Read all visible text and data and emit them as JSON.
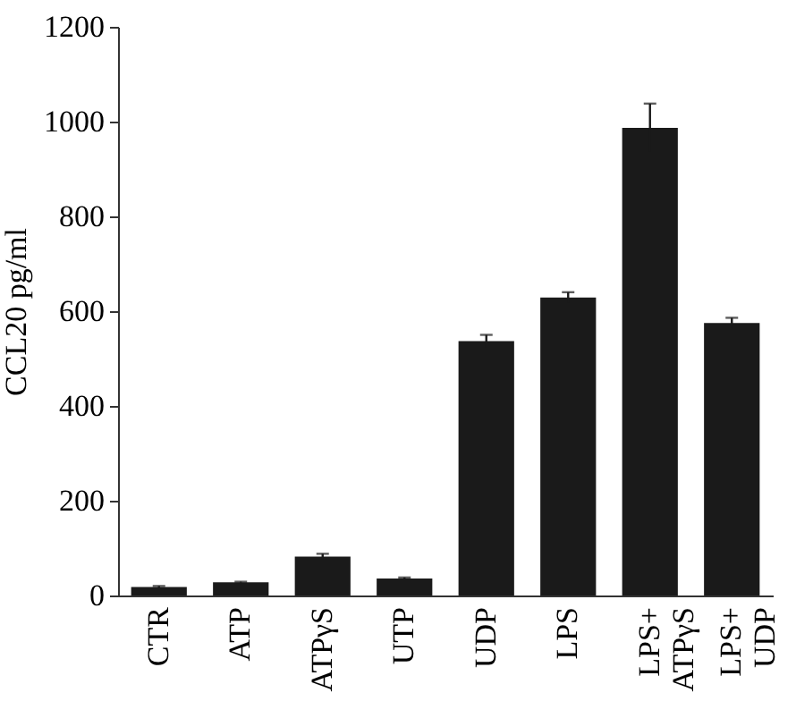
{
  "chart_data": {
    "type": "bar",
    "ylabel": "CCL20 pg/ml",
    "categories": [
      "CTR",
      "ATP",
      "ATPγS",
      "UTP",
      "UDP",
      "LPS",
      "LPS+\nATPγS",
      "LPS+\nUDP"
    ],
    "values": [
      18,
      28,
      82,
      36,
      537,
      629,
      987,
      575
    ],
    "errors": [
      2,
      1,
      6,
      2,
      13,
      11,
      51,
      11
    ],
    "color": "#1a1a1a",
    "ylim": [
      0,
      1200
    ],
    "yticks": [
      0,
      200,
      400,
      600,
      800,
      1000,
      1200
    ],
    "grid": false
  }
}
